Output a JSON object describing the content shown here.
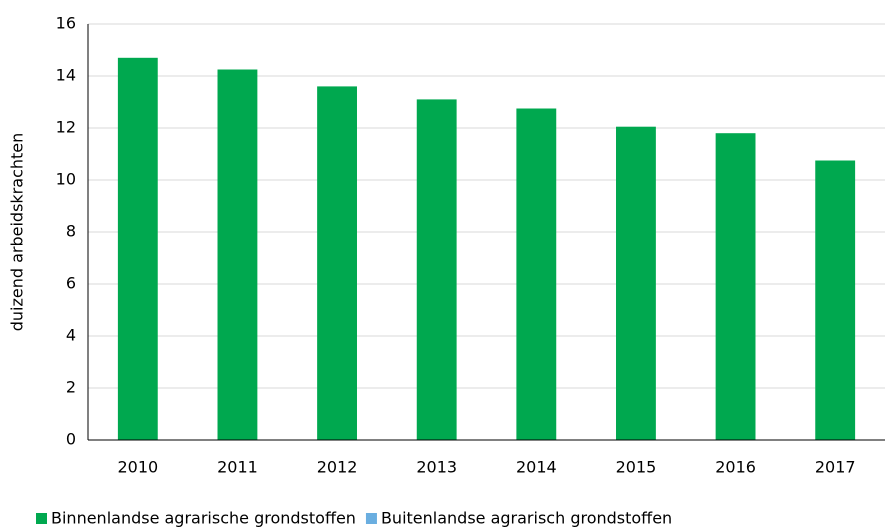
{
  "chart_data": {
    "type": "bar",
    "stacked": true,
    "y_label": "duizend arbeidskrachten",
    "categories": [
      "2010",
      "2011",
      "2012",
      "2013",
      "2014",
      "2015",
      "2016",
      "2017"
    ],
    "series": [
      {
        "name": "Binnenlandse agrarische grondstoffen",
        "color": "#00a84f",
        "values": [
          14.7,
          14.25,
          13.6,
          13.1,
          12.75,
          12.05,
          11.8,
          10.75
        ]
      },
      {
        "name": "Buitenlandse agrarisch grondstoffen",
        "color": "#6aaee0",
        "values": [
          0,
          0,
          0,
          0,
          0,
          0,
          0,
          0
        ]
      }
    ],
    "ylim": [
      0,
      16
    ],
    "yticks": [
      0,
      2,
      4,
      6,
      8,
      10,
      12,
      14,
      16
    ],
    "grid": true,
    "legend": "bottom"
  }
}
